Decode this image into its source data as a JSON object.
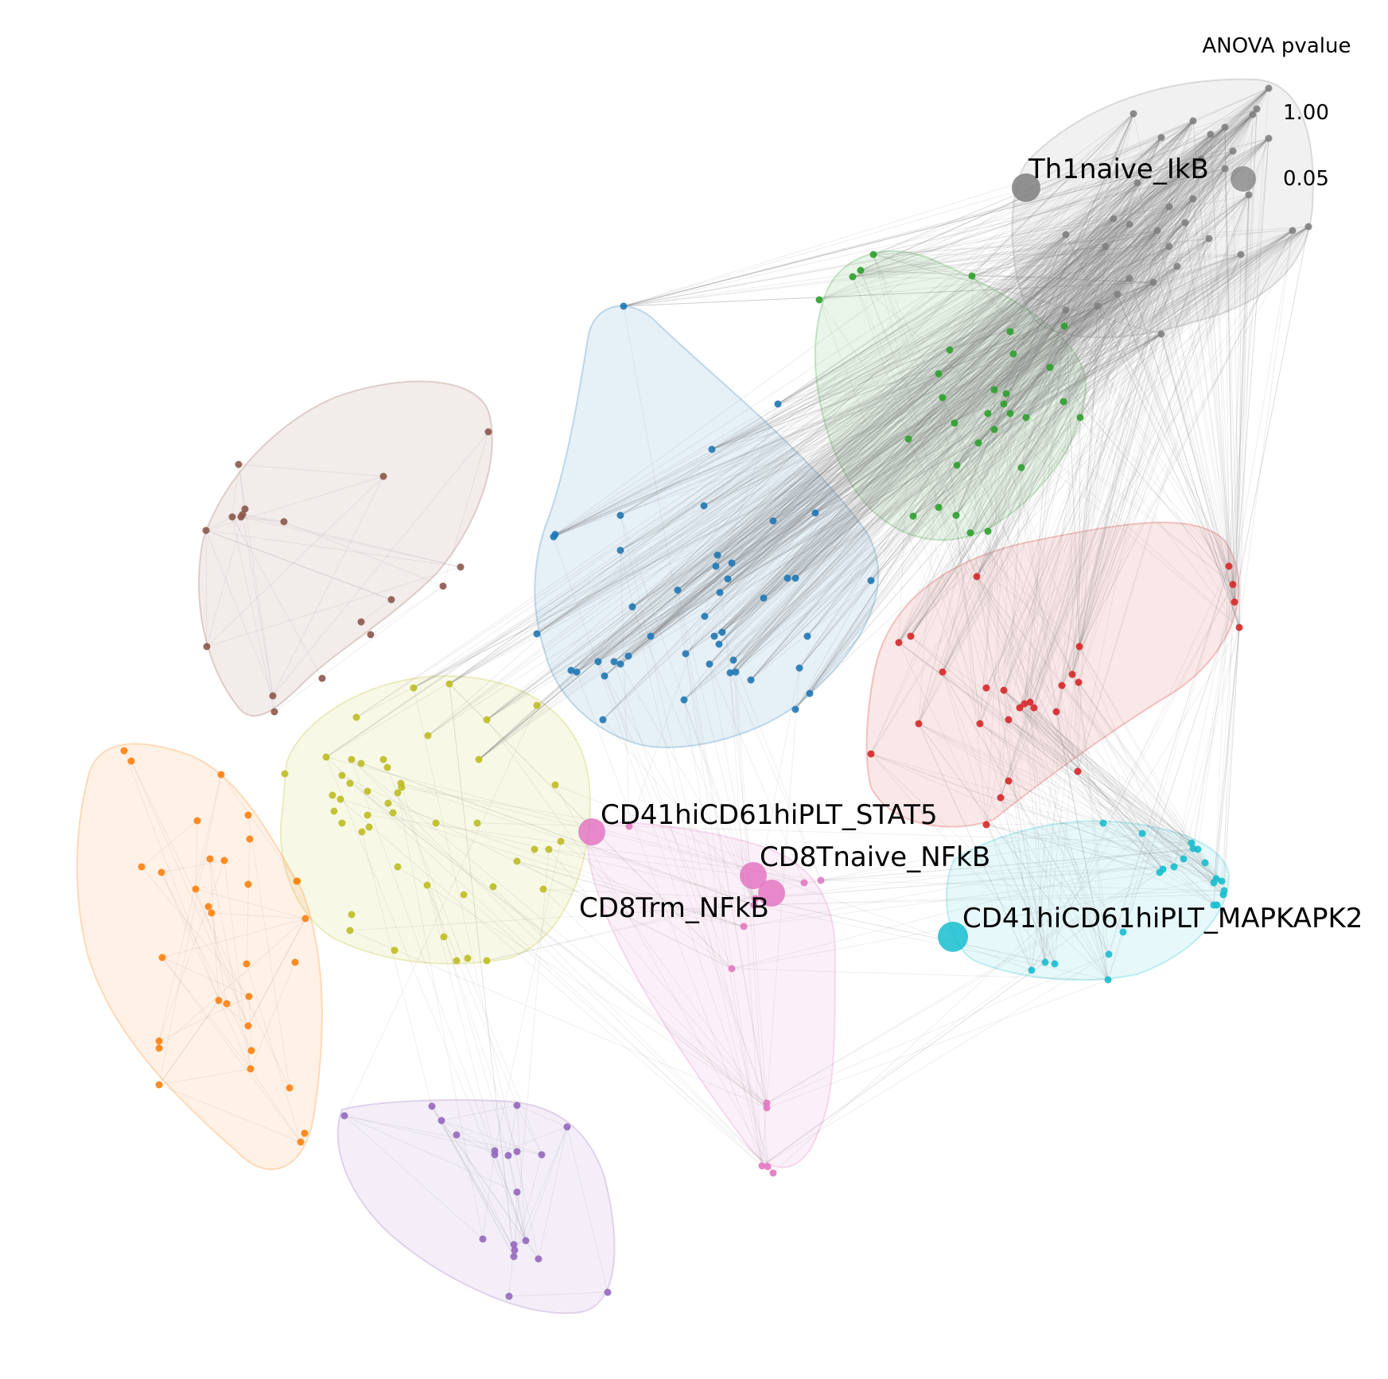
{
  "legend": {
    "title": "ANOVA pvalue",
    "ticks": [
      {
        "label": "1.00",
        "value": 1.0
      },
      {
        "label": "0.05",
        "value": 0.05
      }
    ]
  },
  "colors": {
    "gray": "#7f7f7f",
    "green": "#2ca02c",
    "blue": "#1f77b4",
    "brown": "#8c564b",
    "red": "#d62728",
    "olive": "#bcbd22",
    "orange": "#ff7f0e",
    "pink": "#e377c2",
    "cyan": "#17becf",
    "purple": "#9467bd",
    "edge": "#808080"
  },
  "highlighted_nodes": [
    {
      "label": "Th1naive_IkB",
      "cluster": "gray"
    },
    {
      "label": "CD41hiCD61hiPLT_STAT5",
      "cluster": "pink"
    },
    {
      "label": "CD8Tnaive_NFkB",
      "cluster": "pink"
    },
    {
      "label": "CD8Trm_NFkB",
      "cluster": "pink"
    },
    {
      "label": "CD41hiCD61hiPLT_MAPKAPK2",
      "cluster": "cyan"
    }
  ],
  "clusters": [
    "gray",
    "green",
    "blue",
    "brown",
    "red",
    "olive",
    "orange",
    "pink",
    "cyan",
    "purple"
  ]
}
